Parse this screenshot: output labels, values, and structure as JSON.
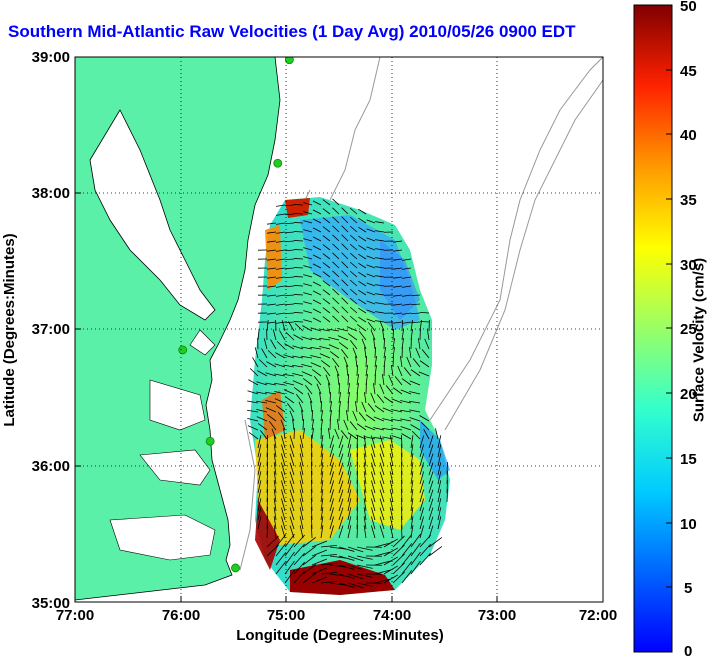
{
  "title": "Southern Mid-Atlantic Raw Velocities (1 Day Avg) 2010/05/26 0900 EDT",
  "axes": {
    "xlabel": "Longitude (Degrees:Minutes)",
    "ylabel": "Latitude (Degrees:Minutes)",
    "xticks": [
      "77:00",
      "76:00",
      "75:00",
      "74:00",
      "73:00",
      "72:00"
    ],
    "yticks": [
      "39:00",
      "38:00",
      "37:00",
      "36:00",
      "35:00"
    ],
    "xlim": [
      -77,
      -72
    ],
    "ylim": [
      35,
      39
    ],
    "grid": "dotted"
  },
  "colorbar": {
    "label": "Surface Velocity (cm/s)",
    "ticks": [
      "50",
      "45",
      "40",
      "35",
      "30",
      "25",
      "20",
      "15",
      "10",
      "5",
      "0"
    ],
    "range": [
      0,
      50
    ],
    "colormap": "jet"
  },
  "colors": {
    "land": "#5af0a8",
    "title": "#0000ff",
    "station": "#22cc22",
    "bathymetry": "#999999"
  },
  "map": {
    "stations": [
      {
        "lon": -74.97,
        "lat": 38.98
      },
      {
        "lon": -75.08,
        "lat": 38.22
      },
      {
        "lon": -75.98,
        "lat": 36.85
      },
      {
        "lon": -75.72,
        "lat": 36.18
      },
      {
        "lon": -75.48,
        "lat": 35.25
      }
    ]
  }
}
